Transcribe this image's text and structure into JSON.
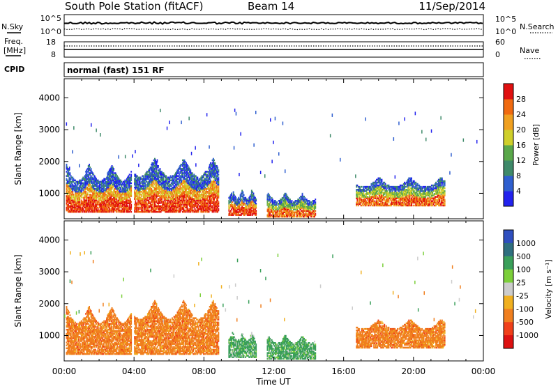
{
  "header": {
    "title": "South Pole Station (fitACF)",
    "beam": "Beam 14",
    "date": "11/Sep/2014"
  },
  "panels": {
    "nsky": {
      "label": "N.Sky",
      "right_label": "N.Search",
      "ytick_top": "10^5",
      "ytick_bottom": "10^0",
      "rtick_top": "10^5",
      "rtick_bottom": "10^0"
    },
    "freq": {
      "label_line1": "Freq.",
      "label_line2": "[MHz]",
      "right_label": "Nave",
      "ytick_top": "18",
      "ytick_bottom": "8",
      "rtick_top": "60",
      "rtick_bottom": "0"
    },
    "cpid": {
      "label": "CPID",
      "text": "normal (fast) 151 RF"
    }
  },
  "colors": {
    "power": [
      "#2222ee",
      "#2f5fcf",
      "#3f8a6a",
      "#5aa84a",
      "#cfcf2a",
      "#f0a020",
      "#f06a10",
      "#e01010"
    ],
    "velocity": [
      "#dd1111",
      "#f0401a",
      "#f07f1f",
      "#f0b020",
      "#cccccc",
      "#7ccf3a",
      "#3a9f5a",
      "#2f6f7f",
      "#2f4fbf"
    ]
  },
  "chart_data": [
    {
      "type": "heatmap",
      "name": "power",
      "ylabel": "Slant Range [km]",
      "yticks": [
        "1000",
        "2000",
        "3000",
        "4000"
      ],
      "ylim": [
        200,
        4600
      ],
      "xticks": [
        "00:00",
        "04:00",
        "08:00",
        "12:00",
        "16:00",
        "20:00",
        "00:00"
      ],
      "colorbar_label": "Power [dB]",
      "colorbar_ticks": [
        "4",
        "8",
        "12",
        "16",
        "20",
        "24",
        "28"
      ],
      "colorbar_range": [
        0,
        32
      ],
      "regions": [
        {
          "t0": 0.1,
          "t1": 3.8,
          "r0": 400,
          "r1": 1900,
          "level": "high"
        },
        {
          "t0": 4.0,
          "t1": 8.8,
          "r0": 400,
          "r1": 2100,
          "level": "high"
        },
        {
          "t0": 9.4,
          "t1": 11.0,
          "r0": 300,
          "r1": 1100,
          "level": "high"
        },
        {
          "t0": 11.6,
          "t1": 14.4,
          "r0": 250,
          "r1": 1000,
          "level": "mid"
        },
        {
          "t0": 16.7,
          "t1": 21.8,
          "r0": 600,
          "r1": 1500,
          "level": "mid"
        }
      ]
    },
    {
      "type": "heatmap",
      "name": "velocity",
      "ylabel": "Slant Range [km]",
      "yticks": [
        "1000",
        "2000",
        "3000",
        "4000"
      ],
      "ylim": [
        200,
        4600
      ],
      "xticks": [
        "00:00",
        "04:00",
        "08:00",
        "12:00",
        "16:00",
        "20:00",
        "00:00"
      ],
      "xlabel": "Time UT",
      "colorbar_label": "Velocity [m s⁻¹]",
      "colorbar_ticks": [
        "1000",
        "500",
        "100",
        "25",
        "-25",
        "-100",
        "-500",
        "-1000"
      ],
      "regions": [
        {
          "t0": 0.1,
          "t1": 3.8,
          "r0": 400,
          "r1": 1900,
          "level": "neg"
        },
        {
          "t0": 4.0,
          "t1": 8.8,
          "r0": 400,
          "r1": 2100,
          "level": "neg"
        },
        {
          "t0": 9.4,
          "t1": 11.0,
          "r0": 300,
          "r1": 1100,
          "level": "pos"
        },
        {
          "t0": 11.6,
          "t1": 14.4,
          "r0": 250,
          "r1": 1000,
          "level": "pos"
        },
        {
          "t0": 16.7,
          "t1": 21.8,
          "r0": 600,
          "r1": 1500,
          "level": "neg"
        }
      ]
    }
  ]
}
